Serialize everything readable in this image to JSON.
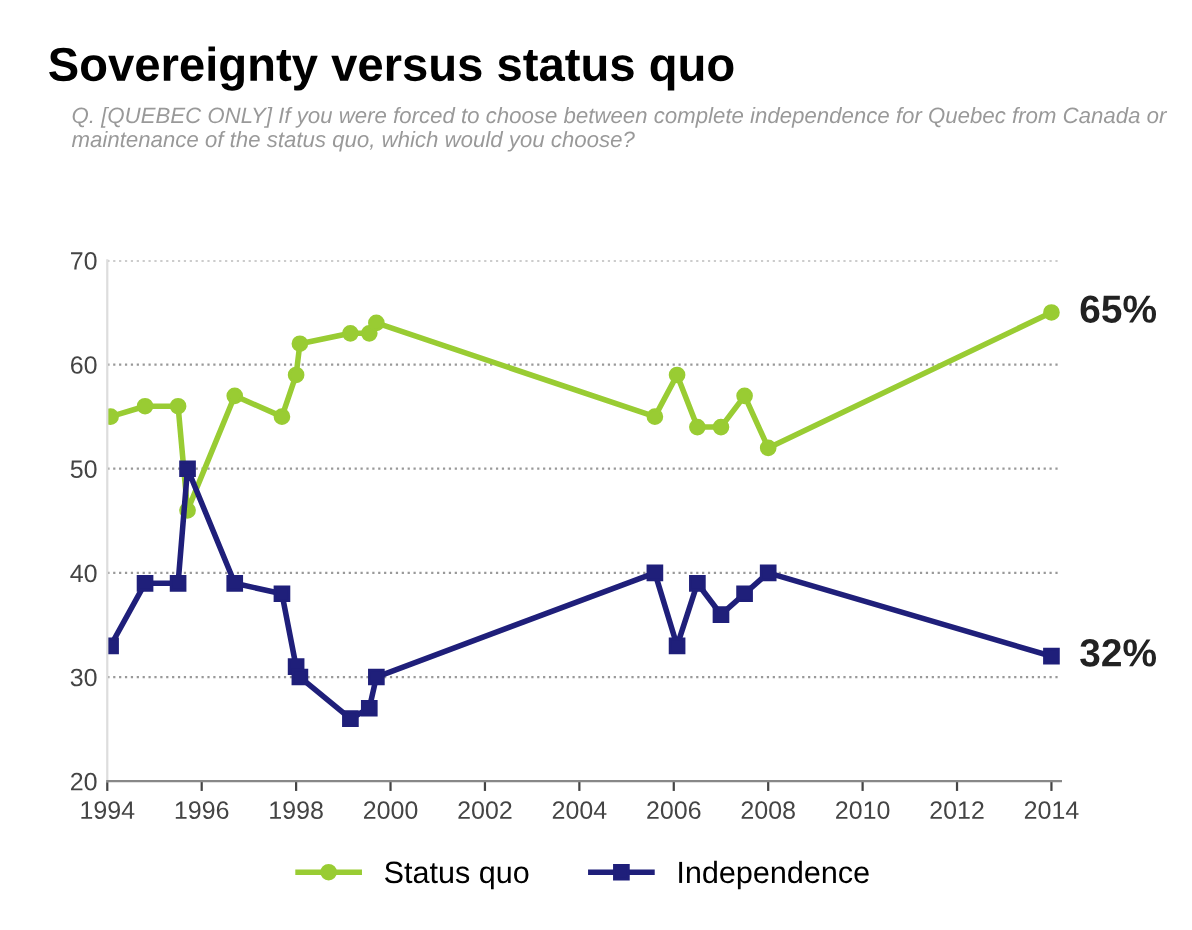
{
  "chart_data": {
    "type": "line",
    "title": "Sovereignty versus status quo",
    "subtitle": "Q. [QUEBEC ONLY] If you were forced to choose between complete independence for Quebec from Canada or maintenance of the status quo, which would you choose?",
    "series": [
      {
        "name": "Status quo",
        "color": "#99cc33",
        "marker": "circle",
        "x": [
          1994.07,
          1994.8,
          1995.5,
          1995.7,
          1996.7,
          1997.7,
          1998.0,
          1998.08,
          1999.15,
          1999.55,
          1999.7,
          2005.6,
          2006.07,
          2006.5,
          2007.0,
          2007.5,
          2008.0,
          2014.0
        ],
        "values": [
          55,
          56,
          56,
          46,
          57,
          55,
          59,
          62,
          63,
          63,
          64,
          55,
          59,
          54,
          54,
          57,
          52,
          65
        ]
      },
      {
        "name": "Independence",
        "color": "#1f1f7a",
        "marker": "square",
        "x": [
          1994.07,
          1994.8,
          1995.5,
          1995.7,
          1996.7,
          1997.7,
          1998.0,
          1998.08,
          1999.15,
          1999.55,
          1999.7,
          2005.6,
          2006.07,
          2006.5,
          2007.0,
          2007.5,
          2008.0,
          2014.0
        ],
        "values": [
          33,
          39,
          39,
          50,
          39,
          38,
          31,
          30,
          26,
          27,
          30,
          40,
          33,
          39,
          36,
          38,
          40,
          32
        ]
      }
    ],
    "annotations": [
      {
        "text": "65%",
        "x": 2014.0,
        "y": 65
      },
      {
        "text": "32%",
        "x": 2014.0,
        "y": 32
      }
    ],
    "xlim": [
      1994,
      2014.2
    ],
    "xticks": [
      1994,
      1996,
      1998,
      2000,
      2002,
      2004,
      2006,
      2008,
      2010,
      2012,
      2014
    ],
    "ylim": [
      20,
      70
    ],
    "yticks": [
      20,
      30,
      40,
      50,
      60,
      70
    ],
    "grid": "y",
    "legend": "bottom",
    "line_style": "solid"
  }
}
